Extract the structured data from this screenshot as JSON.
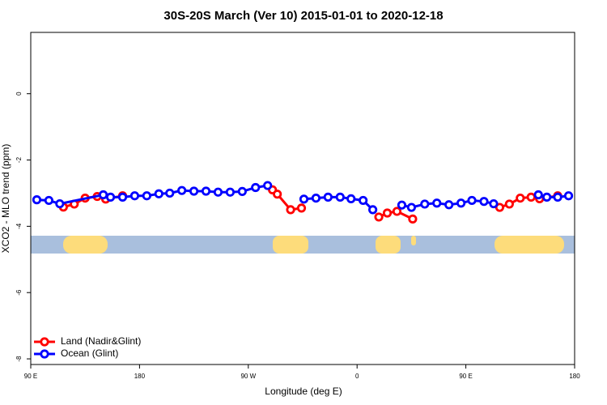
{
  "chart_data": {
    "type": "line",
    "title": "30S-20S March (Ver 10)   2015-01-01 to 2020-12-18",
    "x_label": "Longitude (deg E)",
    "y_label": "XCO2 - MLO trend (ppm)",
    "xlim": [
      90,
      540
    ],
    "xticks": [
      {
        "value": 90,
        "label": "90 E"
      },
      180,
      {
        "value": 270,
        "label": "90 W"
      },
      {
        "value": 360,
        "label": "0"
      },
      {
        "value": 450,
        "label": "90 E"
      },
      {
        "value": 540,
        "label": "180"
      }
    ],
    "ylim": [
      -8.17,
      1.85
    ],
    "yticks": [
      0,
      -2,
      -4,
      -6,
      -8
    ],
    "legend": "bottom-left",
    "series": [
      {
        "name": "Land (Nadir&Glint)",
        "color": "#ff0000",
        "x": [
          117,
          126,
          135,
          145,
          152,
          166,
          230,
          290,
          294,
          305,
          314,
          350,
          378,
          385,
          393,
          406,
          440,
          478,
          486,
          495,
          504,
          511,
          526
        ],
        "values": [
          -3.42,
          -3.33,
          -3.15,
          -3.1,
          -3.18,
          -3.08,
          null,
          -2.9,
          -3.03,
          -3.5,
          -3.45,
          null,
          -3.72,
          -3.6,
          -3.55,
          -3.78,
          null,
          -3.43,
          -3.33,
          -3.15,
          -3.12,
          -3.17,
          -3.08
        ]
      },
      {
        "name": "Ocean (Glint)",
        "color": "#0000ff",
        "x": [
          95,
          105,
          114,
          150,
          156,
          166,
          176,
          186,
          196,
          205,
          215,
          225,
          235,
          245,
          255,
          265,
          276,
          286,
          300,
          316,
          326,
          336,
          346,
          355,
          365,
          373,
          385,
          397,
          405,
          416,
          426,
          436,
          446,
          455,
          465,
          473,
          490,
          510,
          517,
          526,
          535
        ],
        "values": [
          -3.2,
          -3.22,
          -3.32,
          -3.05,
          -3.12,
          -3.12,
          -3.08,
          -3.08,
          -3.02,
          -3.0,
          -2.92,
          -2.94,
          -2.94,
          -2.97,
          -2.97,
          -2.95,
          -2.83,
          -2.77,
          null,
          -3.18,
          -3.15,
          -3.12,
          -3.12,
          -3.17,
          -3.22,
          -3.5,
          null,
          -3.36,
          -3.43,
          -3.33,
          -3.3,
          -3.35,
          -3.3,
          -3.22,
          -3.25,
          -3.32,
          null,
          -3.05,
          -3.12,
          -3.12,
          -3.08
        ]
      }
    ]
  }
}
